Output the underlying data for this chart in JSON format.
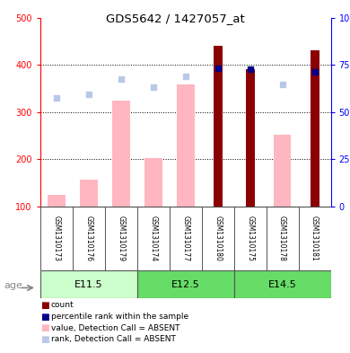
{
  "title": "GDS5642 / 1427057_at",
  "samples": [
    "GSM1310173",
    "GSM1310176",
    "GSM1310179",
    "GSM1310174",
    "GSM1310177",
    "GSM1310180",
    "GSM1310175",
    "GSM1310178",
    "GSM1310181"
  ],
  "groups": [
    {
      "label": "E11.5",
      "indices": [
        0,
        1,
        2
      ]
    },
    {
      "label": "E12.5",
      "indices": [
        3,
        4,
        5
      ]
    },
    {
      "label": "E14.5",
      "indices": [
        6,
        7,
        8
      ]
    }
  ],
  "count_values": [
    null,
    null,
    null,
    null,
    null,
    440,
    390,
    null,
    430
  ],
  "count_color": "#8B0000",
  "pct_rank_values": [
    null,
    null,
    null,
    null,
    null,
    393,
    390,
    null,
    385
  ],
  "pct_rank_color": "#00008B",
  "absent_value": [
    125,
    157,
    325,
    202,
    358,
    null,
    null,
    252,
    null
  ],
  "absent_color": "#FFB6C1",
  "absent_rank": [
    330,
    338,
    370,
    352,
    375,
    null,
    null,
    358,
    null
  ],
  "absent_rank_color": "#B8C8E8",
  "ylim_left": [
    100,
    500
  ],
  "ylim_right": [
    0,
    100
  ],
  "yticks_left": [
    100,
    200,
    300,
    400,
    500
  ],
  "yticks_right": [
    0,
    25,
    50,
    75,
    100
  ],
  "bar_bottom": 100,
  "bar_width": 0.55,
  "count_bar_width": 0.28,
  "group_box_color": "#D3D3D3",
  "group_border_color": "#555555",
  "age_label": "age",
  "group_colors_light": "#CCFFCC",
  "group_colors_dark": "#66DD66",
  "legend_items": [
    {
      "label": "count",
      "color": "#8B0000"
    },
    {
      "label": "percentile rank within the sample",
      "color": "#00008B"
    },
    {
      "label": "value, Detection Call = ABSENT",
      "color": "#FFB6C1"
    },
    {
      "label": "rank, Detection Call = ABSENT",
      "color": "#B8C8E8"
    }
  ],
  "background_color": "#ffffff"
}
